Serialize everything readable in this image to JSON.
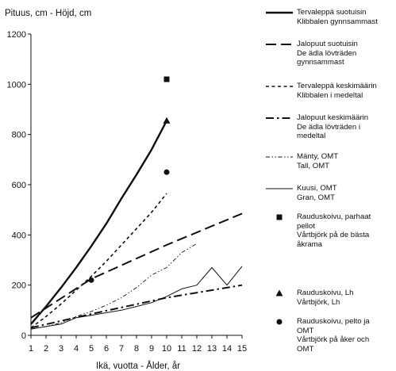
{
  "chart_data": {
    "type": "line",
    "ylabel": "Pituus, cm  -  Höjd, cm",
    "xlabel": "Ikä, vuotta  -  Ålder, år",
    "xlim": [
      1,
      15
    ],
    "ylim": [
      0,
      1200
    ],
    "x_ticks": [
      1,
      2,
      3,
      4,
      5,
      6,
      7,
      8,
      9,
      10,
      11,
      12,
      13,
      14,
      15
    ],
    "y_ticks": [
      0,
      200,
      400,
      600,
      800,
      1000,
      1200
    ],
    "grid": false,
    "legend_position": "right",
    "series": [
      {
        "name": "Tervaleppä suotuisin / Klibbalen gynnsammast",
        "style": "solid-thick",
        "legend_lines": [
          "Tervaleppä suotuisin",
          "Klibbalen gynnsammast"
        ],
        "points": [
          [
            1,
            45
          ],
          [
            2,
            115
          ],
          [
            3,
            190
          ],
          [
            4,
            270
          ],
          [
            5,
            355
          ],
          [
            6,
            445
          ],
          [
            7,
            545
          ],
          [
            8,
            640
          ],
          [
            9,
            740
          ],
          [
            10,
            855
          ]
        ]
      },
      {
        "name": "Jalopuut suotuisin / De ädla lövträden gynnsammast",
        "style": "long-dash",
        "legend_lines": [
          "Jalopuut suotuisin",
          "De ädla lövträden",
          "gynnsammast"
        ],
        "points": [
          [
            1,
            70
          ],
          [
            5,
            225
          ],
          [
            10,
            360
          ],
          [
            15,
            485
          ]
        ]
      },
      {
        "name": "Tervaleppä keskimäärin / Klibbalen i medeltal",
        "style": "short-dash",
        "legend_lines": [
          "Tervaleppä keskimäärin",
          "Klibbalen i medeltal"
        ],
        "points": [
          [
            1,
            30
          ],
          [
            2,
            75
          ],
          [
            3,
            125
          ],
          [
            4,
            180
          ],
          [
            5,
            235
          ],
          [
            6,
            295
          ],
          [
            7,
            360
          ],
          [
            8,
            425
          ],
          [
            9,
            490
          ],
          [
            10,
            565
          ]
        ]
      },
      {
        "name": "Jalopuut keskimäärin / De ädla lövträden i medeltal",
        "style": "dash-dot",
        "legend_lines": [
          "Jalopuut keskimäärin",
          "De ädla lövträden i",
          "medeltal"
        ],
        "points": [
          [
            1,
            30
          ],
          [
            5,
            85
          ],
          [
            10,
            150
          ],
          [
            15,
            200
          ]
        ]
      },
      {
        "name": "Mänty, OMT / Tall, OMT",
        "style": "dash-dot-dot",
        "legend_lines": [
          "Mänty, OMT",
          "Tall, OMT"
        ],
        "points": [
          [
            1,
            25
          ],
          [
            2,
            35
          ],
          [
            3,
            50
          ],
          [
            4,
            75
          ],
          [
            5,
            95
          ],
          [
            6,
            120
          ],
          [
            7,
            150
          ],
          [
            8,
            190
          ],
          [
            9,
            240
          ],
          [
            10,
            270
          ],
          [
            11,
            330
          ],
          [
            12,
            365
          ]
        ]
      },
      {
        "name": "Kuusi, OMT / Gran, OMT",
        "style": "solid-thin",
        "legend_lines": [
          "Kuusi, OMT",
          "Gran, OMT"
        ],
        "points": [
          [
            1,
            25
          ],
          [
            2,
            35
          ],
          [
            3,
            45
          ],
          [
            4,
            70
          ],
          [
            5,
            80
          ],
          [
            6,
            90
          ],
          [
            7,
            100
          ],
          [
            8,
            115
          ],
          [
            9,
            130
          ],
          [
            10,
            155
          ],
          [
            11,
            185
          ],
          [
            12,
            200
          ],
          [
            13,
            270
          ],
          [
            14,
            200
          ],
          [
            15,
            275
          ]
        ]
      }
    ],
    "markers": [
      {
        "name": "Rauduskoivu, parhaat pellot / Vårtbjörk på de bästa åkrarna",
        "symbol": "square",
        "legend_lines": [
          "Rauduskoivu, parhaat",
          "pellot",
          "Vårtbjörk på de bästa",
          "åkrama"
        ],
        "points": [
          [
            10,
            1020
          ]
        ]
      },
      {
        "name": "Rauduskoivu, Lh / Vårtbjörk, Lh",
        "symbol": "triangle",
        "legend_lines": [
          "Rauduskoivu, Lh",
          "Vårtbjörk, Lh"
        ],
        "points": [
          [
            10,
            855
          ]
        ]
      },
      {
        "name": "Rauduskoivu, pelto ja OMT / Vårtbjörk på åker och OMT",
        "symbol": "circle",
        "legend_lines": [
          "Rauduskoivu, pelto ja",
          "OMT",
          "Vårtbjörk på åker och",
          "OMT"
        ],
        "points": [
          [
            10,
            650
          ],
          [
            5,
            220
          ]
        ]
      }
    ]
  }
}
